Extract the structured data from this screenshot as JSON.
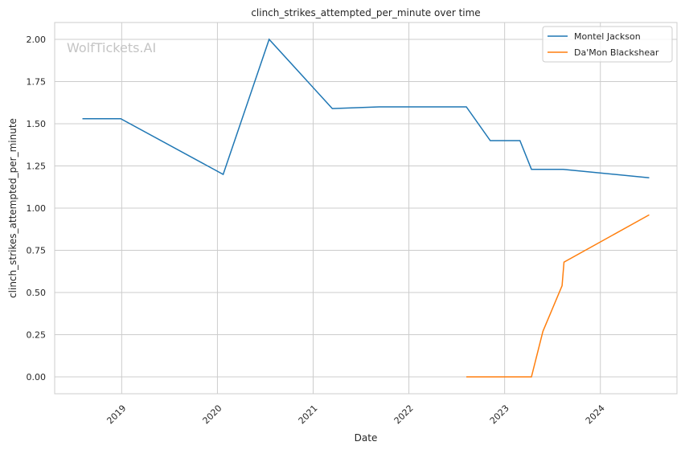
{
  "chart_data": {
    "type": "line",
    "title": "clinch_strikes_attempted_per_minute over time",
    "xlabel": "Date",
    "ylabel": "clinch_strikes_attempted_per_minute",
    "watermark": "WolfTickets.AI",
    "xlim": [
      2018.3,
      2024.8
    ],
    "ylim": [
      -0.1,
      2.1
    ],
    "xticks": [
      2019,
      2020,
      2021,
      2022,
      2023,
      2024
    ],
    "xtick_labels": [
      "2019",
      "2020",
      "2021",
      "2022",
      "2023",
      "2024"
    ],
    "yticks": [
      0,
      0.25,
      0.5,
      0.75,
      1.0,
      1.25,
      1.5,
      1.75,
      2.0
    ],
    "ytick_labels": [
      "0.00",
      "0.25",
      "0.50",
      "0.75",
      "1.00",
      "1.25",
      "1.50",
      "1.75",
      "2.00"
    ],
    "grid": true,
    "legend_placement": "top-right",
    "series": [
      {
        "name": "Montel Jackson",
        "color": "#1f77b4",
        "x": [
          2018.59,
          2018.99,
          2020.06,
          2020.54,
          2021.2,
          2021.69,
          2022.6,
          2022.85,
          2023.16,
          2023.28,
          2023.61,
          2024.51
        ],
        "y": [
          1.53,
          1.53,
          1.2,
          2.0,
          1.59,
          1.6,
          1.6,
          1.4,
          1.4,
          1.23,
          1.23,
          1.18
        ]
      },
      {
        "name": "Da'Mon Blackshear",
        "color": "#ff7f0e",
        "x": [
          2022.6,
          2023.28,
          2023.4,
          2023.6,
          2023.62,
          2024.51
        ],
        "y": [
          0.0,
          0.0,
          0.27,
          0.54,
          0.68,
          0.96
        ]
      }
    ]
  }
}
